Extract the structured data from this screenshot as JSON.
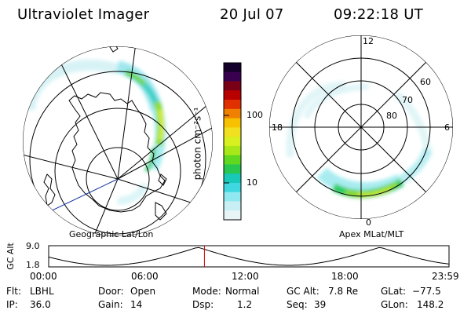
{
  "header": {
    "title": "Ultraviolet Imager",
    "date": "20 Jul 07",
    "time": "09:22:18 UT"
  },
  "colorbar": {
    "unit_label": "photon cm⁻²s⁻¹",
    "tick_high": "100",
    "tick_low": "10",
    "colors_top_to_bottom": [
      "#14002a",
      "#3a0050",
      "#7a0018",
      "#b80000",
      "#e03000",
      "#f08000",
      "#f7c000",
      "#f0e020",
      "#d8f020",
      "#a8e818",
      "#60d820",
      "#28c850",
      "#18c8b8",
      "#40d8e0",
      "#90e8f0",
      "#c8f0f4",
      "#e8f4f6"
    ]
  },
  "map_geo": {
    "caption": "Geographic Lat/Lon"
  },
  "map_mag": {
    "caption": "Apex MLat/MLT",
    "mlt_labels": {
      "top": "12",
      "bottom": "0",
      "left": "18",
      "right": "6"
    },
    "lat_labels": [
      "60",
      "70",
      "80"
    ]
  },
  "altitude_plot": {
    "axis_label": "GC Alt",
    "y_top": "9.0",
    "y_bottom": "1.8",
    "time_ticks": [
      "00:00",
      "06:00",
      "12:00",
      "18:00",
      "23:59"
    ],
    "current_time_fraction": 0.389,
    "marker_color": "#cc0000"
  },
  "footer": {
    "filter_key": "Flt:",
    "filter_val": "LBHL",
    "ip_key": "IP:",
    "ip_val": "36.0",
    "door_key": "Door:",
    "door_val": "Open",
    "gain_key": "Gain:",
    "gain_val": "14",
    "mode_key": "Mode:",
    "mode_val": "Normal",
    "dsp_key": "Dsp:",
    "dsp_val": "1.2",
    "gcalt_key": "GC Alt:",
    "gcalt_val": "7.8 Re",
    "seq_key": "Seq:",
    "seq_val": "39",
    "glat_key": "GLat:",
    "glat_val": "−77.5",
    "glon_key": "GLon:",
    "glon_val": "148.2"
  }
}
